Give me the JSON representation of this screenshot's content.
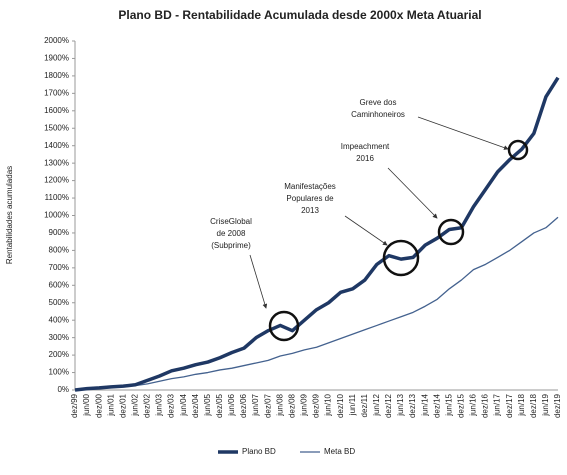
{
  "chart_data": {
    "type": "line",
    "title": "Plano BD - Rentabilidade Acumulada desde 2000x Meta Atuarial",
    "y_label": "Rentabilidades acumuladas",
    "categories": [
      "dez/99",
      "jun/00",
      "dez/00",
      "jun/01",
      "dez/01",
      "jun/02",
      "dez/02",
      "jun/03",
      "dez/03",
      "jun/04",
      "dez/04",
      "jun/05",
      "dez/05",
      "jun/06",
      "dez/06",
      "jun/07",
      "dez/07",
      "jun/08",
      "dez/08",
      "jun/09",
      "dez/09",
      "jun/10",
      "dez/10",
      "jun/11",
      "dez/11",
      "jun/12",
      "dez/12",
      "jun/13",
      "dez/13",
      "jun/14",
      "dez/14",
      "jun/15",
      "dez/15",
      "jun/16",
      "dez/16",
      "jun/17",
      "dez/17",
      "jun/18",
      "dez/18",
      "jun/19",
      "dez/19"
    ],
    "series": [
      {
        "name": "Plano BD",
        "color": "#1f3864",
        "width": 3.5,
        "values": [
          0,
          8,
          12,
          18,
          22,
          30,
          55,
          80,
          110,
          125,
          145,
          160,
          185,
          215,
          240,
          300,
          340,
          370,
          340,
          400,
          460,
          500,
          560,
          580,
          630,
          720,
          770,
          750,
          760,
          830,
          870,
          920,
          930,
          1050,
          1150,
          1250,
          1320,
          1380,
          1470,
          1680,
          1790
        ]
      },
      {
        "name": "Meta BD",
        "color": "#44628f",
        "width": 1.3,
        "values": [
          0,
          5,
          10,
          15,
          20,
          25,
          35,
          50,
          65,
          75,
          90,
          100,
          115,
          125,
          140,
          155,
          170,
          195,
          210,
          230,
          245,
          270,
          295,
          320,
          345,
          370,
          395,
          420,
          445,
          480,
          520,
          580,
          630,
          690,
          720,
          760,
          800,
          850,
          900,
          930,
          990
        ]
      }
    ],
    "ylim": [
      0,
      2000
    ],
    "yticks": [
      {
        "value": 0,
        "label": "0%"
      },
      {
        "value": 100,
        "label": "100%"
      },
      {
        "value": 200,
        "label": "200%"
      },
      {
        "value": 300,
        "label": "300%"
      },
      {
        "value": 400,
        "label": "400%"
      },
      {
        "value": 500,
        "label": "500%"
      },
      {
        "value": 600,
        "label": "600%"
      },
      {
        "value": 700,
        "label": "700%"
      },
      {
        "value": 800,
        "label": "800%"
      },
      {
        "value": 900,
        "label": "900%"
      },
      {
        "value": 1000,
        "label": "1000%"
      },
      {
        "value": 1100,
        "label": "1100%"
      },
      {
        "value": 1200,
        "label": "1200%"
      },
      {
        "value": 1300,
        "label": "1300%"
      },
      {
        "value": 1400,
        "label": "1400%"
      },
      {
        "value": 1500,
        "label": "1500%"
      },
      {
        "value": 1600,
        "label": "1600%"
      },
      {
        "value": 1700,
        "label": "1700%"
      },
      {
        "value": 1800,
        "label": "1800%"
      },
      {
        "value": 1900,
        "label": "1900%"
      },
      {
        "value": 2000,
        "label": "2000%"
      }
    ],
    "grid": false,
    "legend": "bottom",
    "annotations": [
      {
        "lines": [
          "CriseGlobal",
          "de 2008",
          "(Subprime)"
        ]
      },
      {
        "lines": [
          "Manifestações",
          "Populares de",
          "2013"
        ]
      },
      {
        "lines": [
          "Impeachment",
          "2016"
        ]
      },
      {
        "lines": [
          "Greve dos",
          "Caminhoneiros"
        ]
      }
    ]
  }
}
